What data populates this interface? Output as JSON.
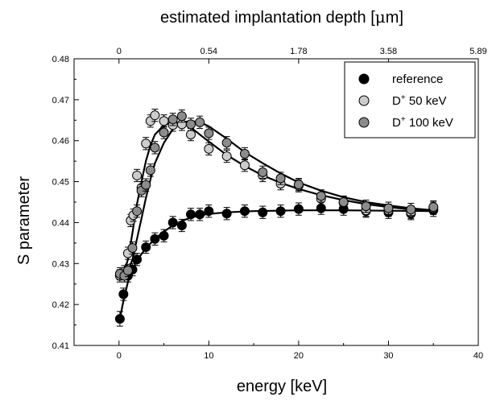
{
  "chart_data": {
    "type": "scatter",
    "xlabel": "energy [keV]",
    "ylabel": "S parameter",
    "top_axis_label_prefix": "estimated implantation depth [",
    "top_axis_label_symbol": "μ",
    "top_axis_label_suffix": "m]",
    "xlim": [
      -5,
      40
    ],
    "ylim": [
      0.41,
      0.48
    ],
    "x_ticks": [
      0,
      10,
      20,
      30,
      40
    ],
    "y_ticks": [
      0.41,
      0.42,
      0.43,
      0.44,
      0.45,
      0.46,
      0.47,
      0.48
    ],
    "top_ticks": [
      {
        "energy": 0,
        "label": "0"
      },
      {
        "energy": 10,
        "label": "0.54"
      },
      {
        "energy": 20,
        "label": "1.78"
      },
      {
        "energy": 30,
        "label": "3.58"
      },
      {
        "energy": 40,
        "label": "5.89"
      }
    ],
    "grid": false,
    "legend_position": "top-right",
    "series": [
      {
        "name": "reference",
        "legend_base": "reference",
        "legend_sup": "",
        "legend_after": "",
        "color": "#000000",
        "points": [
          {
            "x": 0.1,
            "y": 0.4165,
            "err": 0.0018
          },
          {
            "x": 0.5,
            "y": 0.4225,
            "err": 0.0015
          },
          {
            "x": 1.0,
            "y": 0.427,
            "err": 0.0015
          },
          {
            "x": 1.5,
            "y": 0.4285,
            "err": 0.0015
          },
          {
            "x": 2.0,
            "y": 0.431,
            "err": 0.0015
          },
          {
            "x": 3.0,
            "y": 0.434,
            "err": 0.0015
          },
          {
            "x": 4.0,
            "y": 0.436,
            "err": 0.0015
          },
          {
            "x": 5.0,
            "y": 0.4368,
            "err": 0.0015
          },
          {
            "x": 6.0,
            "y": 0.44,
            "err": 0.0015
          },
          {
            "x": 7.0,
            "y": 0.4393,
            "err": 0.0015
          },
          {
            "x": 8.0,
            "y": 0.442,
            "err": 0.0015
          },
          {
            "x": 9.0,
            "y": 0.442,
            "err": 0.0015
          },
          {
            "x": 10.0,
            "y": 0.4428,
            "err": 0.0015
          },
          {
            "x": 12.0,
            "y": 0.4422,
            "err": 0.0015
          },
          {
            "x": 14.0,
            "y": 0.4428,
            "err": 0.0015
          },
          {
            "x": 16.0,
            "y": 0.4425,
            "err": 0.0015
          },
          {
            "x": 18.0,
            "y": 0.4428,
            "err": 0.0015
          },
          {
            "x": 20.0,
            "y": 0.4433,
            "err": 0.0015
          },
          {
            "x": 22.5,
            "y": 0.4435,
            "err": 0.0015
          },
          {
            "x": 25.0,
            "y": 0.4433,
            "err": 0.0015
          },
          {
            "x": 27.5,
            "y": 0.4428,
            "err": 0.0015
          },
          {
            "x": 30.0,
            "y": 0.4425,
            "err": 0.0015
          },
          {
            "x": 32.5,
            "y": 0.4422,
            "err": 0.0015
          },
          {
            "x": 35.0,
            "y": 0.443,
            "err": 0.0015
          }
        ],
        "fit": [
          [
            0.1,
            0.4165
          ],
          [
            0.5,
            0.421
          ],
          [
            1,
            0.4255
          ],
          [
            1.5,
            0.4285
          ],
          [
            2,
            0.4308
          ],
          [
            3,
            0.4338
          ],
          [
            4,
            0.436
          ],
          [
            5,
            0.4378
          ],
          [
            6,
            0.4393
          ],
          [
            7,
            0.4404
          ],
          [
            8,
            0.4412
          ],
          [
            9,
            0.4418
          ],
          [
            10,
            0.4421
          ],
          [
            12,
            0.4425
          ],
          [
            15,
            0.4428
          ],
          [
            20,
            0.443
          ],
          [
            25,
            0.443
          ],
          [
            30,
            0.4429
          ],
          [
            35,
            0.4428
          ]
        ]
      },
      {
        "name": "D+ 50 keV",
        "legend_base": "D",
        "legend_sup": "+",
        "legend_after": " 50 keV",
        "color": "#cccccc",
        "points": [
          {
            "x": 0.1,
            "y": 0.427,
            "err": 0.0015
          },
          {
            "x": 0.6,
            "y": 0.428,
            "err": 0.0015
          },
          {
            "x": 1.0,
            "y": 0.4325,
            "err": 0.0015
          },
          {
            "x": 1.3,
            "y": 0.4405,
            "err": 0.0015
          },
          {
            "x": 1.6,
            "y": 0.4418,
            "err": 0.0015
          },
          {
            "x": 2.0,
            "y": 0.4515,
            "err": 0.0015
          },
          {
            "x": 2.5,
            "y": 0.4485,
            "err": 0.0015
          },
          {
            "x": 3.0,
            "y": 0.4593,
            "err": 0.0015
          },
          {
            "x": 3.5,
            "y": 0.4648,
            "err": 0.0015
          },
          {
            "x": 4.0,
            "y": 0.4662,
            "err": 0.0015
          },
          {
            "x": 5.0,
            "y": 0.4648,
            "err": 0.0015
          },
          {
            "x": 6.0,
            "y": 0.4638,
            "err": 0.0015
          },
          {
            "x": 7.0,
            "y": 0.464,
            "err": 0.0015
          },
          {
            "x": 8.0,
            "y": 0.4615,
            "err": 0.0015
          },
          {
            "x": 10.0,
            "y": 0.458,
            "err": 0.0015
          },
          {
            "x": 12.0,
            "y": 0.4562,
            "err": 0.0015
          },
          {
            "x": 14.0,
            "y": 0.454,
            "err": 0.0015
          },
          {
            "x": 16.0,
            "y": 0.4515,
            "err": 0.0015
          },
          {
            "x": 18.0,
            "y": 0.4495,
            "err": 0.0015
          },
          {
            "x": 20.0,
            "y": 0.449,
            "err": 0.0015
          },
          {
            "x": 22.5,
            "y": 0.4458,
            "err": 0.0015
          },
          {
            "x": 25.0,
            "y": 0.4448,
            "err": 0.0015
          },
          {
            "x": 27.5,
            "y": 0.443,
            "err": 0.0015
          },
          {
            "x": 30.0,
            "y": 0.443,
            "err": 0.0015
          },
          {
            "x": 32.5,
            "y": 0.4425,
            "err": 0.0015
          },
          {
            "x": 35.0,
            "y": 0.4435,
            "err": 0.0015
          }
        ],
        "fit": [
          [
            0.1,
            0.4265
          ],
          [
            0.5,
            0.4275
          ],
          [
            1,
            0.431
          ],
          [
            1.5,
            0.4375
          ],
          [
            2,
            0.4445
          ],
          [
            2.5,
            0.45
          ],
          [
            3,
            0.455
          ],
          [
            3.5,
            0.4588
          ],
          [
            4,
            0.4615
          ],
          [
            5,
            0.4638
          ],
          [
            6,
            0.4645
          ],
          [
            7,
            0.4642
          ],
          [
            8,
            0.4632
          ],
          [
            9,
            0.4615
          ],
          [
            10,
            0.4598
          ],
          [
            12,
            0.4565
          ],
          [
            14,
            0.4538
          ],
          [
            16,
            0.4515
          ],
          [
            18,
            0.4497
          ],
          [
            20,
            0.4482
          ],
          [
            22.5,
            0.4467
          ],
          [
            25,
            0.4455
          ],
          [
            27.5,
            0.4445
          ],
          [
            30,
            0.4438
          ],
          [
            32.5,
            0.4432
          ],
          [
            35,
            0.4428
          ]
        ]
      },
      {
        "name": "D+ 100 keV",
        "legend_base": "D",
        "legend_sup": "+",
        "legend_after": " 100 keV",
        "color": "#8c8c8c",
        "points": [
          {
            "x": 0.1,
            "y": 0.4275,
            "err": 0.0015
          },
          {
            "x": 0.6,
            "y": 0.427,
            "err": 0.0015
          },
          {
            "x": 1.0,
            "y": 0.4283,
            "err": 0.0015
          },
          {
            "x": 1.5,
            "y": 0.4338,
            "err": 0.0015
          },
          {
            "x": 2.0,
            "y": 0.4428,
            "err": 0.0015
          },
          {
            "x": 2.5,
            "y": 0.4478,
            "err": 0.0015
          },
          {
            "x": 3.0,
            "y": 0.4492,
            "err": 0.0015
          },
          {
            "x": 3.5,
            "y": 0.4528,
            "err": 0.0015
          },
          {
            "x": 4.0,
            "y": 0.4583,
            "err": 0.0015
          },
          {
            "x": 5.0,
            "y": 0.462,
            "err": 0.0015
          },
          {
            "x": 6.0,
            "y": 0.4652,
            "err": 0.0015
          },
          {
            "x": 7.0,
            "y": 0.466,
            "err": 0.0015
          },
          {
            "x": 8.0,
            "y": 0.464,
            "err": 0.0015
          },
          {
            "x": 9.0,
            "y": 0.4645,
            "err": 0.0015
          },
          {
            "x": 10.0,
            "y": 0.4618,
            "err": 0.0015
          },
          {
            "x": 12.0,
            "y": 0.4595,
            "err": 0.0015
          },
          {
            "x": 14.0,
            "y": 0.4568,
            "err": 0.0015
          },
          {
            "x": 16.0,
            "y": 0.4523,
            "err": 0.0015
          },
          {
            "x": 18.0,
            "y": 0.4508,
            "err": 0.0015
          },
          {
            "x": 20.0,
            "y": 0.4493,
            "err": 0.0015
          },
          {
            "x": 22.5,
            "y": 0.4465,
            "err": 0.0015
          },
          {
            "x": 25.0,
            "y": 0.445,
            "err": 0.0015
          },
          {
            "x": 27.5,
            "y": 0.444,
            "err": 0.0015
          },
          {
            "x": 30.0,
            "y": 0.4435,
            "err": 0.0015
          },
          {
            "x": 32.5,
            "y": 0.4432,
            "err": 0.0015
          },
          {
            "x": 35.0,
            "y": 0.4438,
            "err": 0.0015
          }
        ],
        "fit": [
          [
            0.1,
            0.427
          ],
          [
            0.5,
            0.427
          ],
          [
            1,
            0.428
          ],
          [
            1.5,
            0.431
          ],
          [
            2,
            0.436
          ],
          [
            2.5,
            0.441
          ],
          [
            3,
            0.446
          ],
          [
            3.5,
            0.4505
          ],
          [
            4,
            0.4545
          ],
          [
            5,
            0.4595
          ],
          [
            6,
            0.4628
          ],
          [
            7,
            0.4645
          ],
          [
            8,
            0.4648
          ],
          [
            9,
            0.4645
          ],
          [
            10,
            0.4635
          ],
          [
            12,
            0.4605
          ],
          [
            14,
            0.4572
          ],
          [
            16,
            0.4545
          ],
          [
            18,
            0.452
          ],
          [
            20,
            0.4498
          ],
          [
            22.5,
            0.4478
          ],
          [
            25,
            0.4462
          ],
          [
            27.5,
            0.445
          ],
          [
            30,
            0.4442
          ],
          [
            32.5,
            0.4435
          ],
          [
            35,
            0.443
          ]
        ]
      }
    ]
  }
}
